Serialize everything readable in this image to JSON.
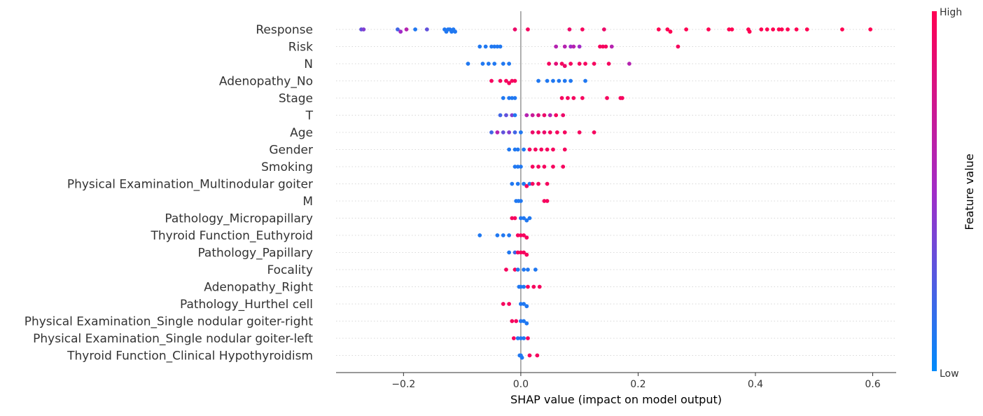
{
  "chart_data": {
    "type": "scatter",
    "subtype": "shap-beeswarm",
    "xlabel": "SHAP value (impact on model output)",
    "xlim": [
      -0.315,
      0.64
    ],
    "x_ticks": [
      {
        "value": -0.2,
        "label": "−0.2"
      },
      {
        "value": 0.0,
        "label": "0.0"
      },
      {
        "value": 0.2,
        "label": "0.2"
      },
      {
        "value": 0.4,
        "label": "0.4"
      },
      {
        "value": 0.6,
        "label": "0.6"
      }
    ],
    "colorbar": {
      "title": "Feature value",
      "high_label": "High",
      "low_label": "Low",
      "high_color": "#ff0052",
      "mid_color": "#a22bc7",
      "low_color": "#008bfb"
    },
    "grid": "horizontal dotted per feature",
    "features": [
      {
        "name": "Response",
        "points": [
          [
            -0.272,
            0.3
          ],
          [
            -0.268,
            0.4
          ],
          [
            -0.21,
            0.2
          ],
          [
            -0.205,
            0.5
          ],
          [
            -0.195,
            0.6
          ],
          [
            -0.18,
            0.1
          ],
          [
            -0.16,
            0.3
          ],
          [
            -0.13,
            0.1
          ],
          [
            -0.127,
            0.1
          ],
          [
            -0.124,
            0.1
          ],
          [
            -0.121,
            0.1
          ],
          [
            -0.118,
            0.1
          ],
          [
            -0.115,
            0.1
          ],
          [
            -0.112,
            0.1
          ],
          [
            -0.01,
            0.9
          ],
          [
            0.012,
            0.95
          ],
          [
            0.083,
            0.9
          ],
          [
            0.105,
            0.95
          ],
          [
            0.142,
            0.9
          ],
          [
            0.235,
            1
          ],
          [
            0.25,
            1
          ],
          [
            0.255,
            1
          ],
          [
            0.282,
            1
          ],
          [
            0.32,
            1
          ],
          [
            0.355,
            1
          ],
          [
            0.36,
            1
          ],
          [
            0.388,
            1
          ],
          [
            0.39,
            1
          ],
          [
            0.41,
            1
          ],
          [
            0.42,
            1
          ],
          [
            0.43,
            1
          ],
          [
            0.44,
            1
          ],
          [
            0.445,
            1
          ],
          [
            0.455,
            1
          ],
          [
            0.47,
            1
          ],
          [
            0.488,
            1
          ],
          [
            0.548,
            1
          ],
          [
            0.596,
            1
          ]
        ]
      },
      {
        "name": "Risk",
        "points": [
          [
            -0.07,
            0.1
          ],
          [
            -0.06,
            0.1
          ],
          [
            -0.05,
            0.1
          ],
          [
            -0.045,
            0.1
          ],
          [
            -0.04,
            0.1
          ],
          [
            -0.035,
            0.1
          ],
          [
            0.06,
            0.6
          ],
          [
            0.075,
            0.6
          ],
          [
            0.085,
            0.5
          ],
          [
            0.09,
            0.6
          ],
          [
            0.1,
            0.5
          ],
          [
            0.135,
            0.95
          ],
          [
            0.14,
            0.95
          ],
          [
            0.145,
            0.95
          ],
          [
            0.155,
            0.6
          ],
          [
            0.268,
            0.95
          ]
        ]
      },
      {
        "name": "N",
        "points": [
          [
            -0.09,
            0.1
          ],
          [
            -0.065,
            0.1
          ],
          [
            -0.055,
            0.1
          ],
          [
            -0.045,
            0.1
          ],
          [
            -0.03,
            0.1
          ],
          [
            -0.02,
            0.1
          ],
          [
            0.048,
            0.95
          ],
          [
            0.06,
            0.85
          ],
          [
            0.07,
            0.95
          ],
          [
            0.075,
            0.9
          ],
          [
            0.085,
            0.95
          ],
          [
            0.1,
            0.95
          ],
          [
            0.11,
            0.95
          ],
          [
            0.125,
            0.95
          ],
          [
            0.15,
            0.95
          ],
          [
            0.185,
            0.6
          ]
        ]
      },
      {
        "name": "Adenopathy_No",
        "points": [
          [
            -0.05,
            0.95
          ],
          [
            -0.035,
            0.95
          ],
          [
            -0.025,
            0.95
          ],
          [
            -0.02,
            0.95
          ],
          [
            -0.015,
            0.95
          ],
          [
            -0.01,
            0.95
          ],
          [
            0.03,
            0.1
          ],
          [
            0.045,
            0.1
          ],
          [
            0.055,
            0.1
          ],
          [
            0.065,
            0.1
          ],
          [
            0.075,
            0.1
          ],
          [
            0.085,
            0.1
          ],
          [
            0.11,
            0.1
          ]
        ]
      },
      {
        "name": "Stage",
        "points": [
          [
            -0.03,
            0.1
          ],
          [
            -0.02,
            0.1
          ],
          [
            -0.015,
            0.1
          ],
          [
            -0.01,
            0.1
          ],
          [
            0.07,
            0.95
          ],
          [
            0.08,
            0.95
          ],
          [
            0.09,
            0.95
          ],
          [
            0.105,
            0.95
          ],
          [
            0.147,
            0.95
          ],
          [
            0.17,
            0.95
          ],
          [
            0.173,
            0.95
          ]
        ]
      },
      {
        "name": "T",
        "points": [
          [
            -0.035,
            0.2
          ],
          [
            -0.025,
            0.3
          ],
          [
            -0.015,
            0.4
          ],
          [
            -0.01,
            0.1
          ],
          [
            0.01,
            0.6
          ],
          [
            0.02,
            0.7
          ],
          [
            0.03,
            0.8
          ],
          [
            0.04,
            0.9
          ],
          [
            0.05,
            0.6
          ],
          [
            0.06,
            0.95
          ],
          [
            0.072,
            0.9
          ]
        ]
      },
      {
        "name": "Age",
        "points": [
          [
            -0.05,
            0.2
          ],
          [
            -0.04,
            0.6
          ],
          [
            -0.03,
            0.3
          ],
          [
            -0.02,
            0.4
          ],
          [
            -0.01,
            0.2
          ],
          [
            0.0,
            0.1
          ],
          [
            0.02,
            0.9
          ],
          [
            0.03,
            0.95
          ],
          [
            0.04,
            0.9
          ],
          [
            0.05,
            0.95
          ],
          [
            0.062,
            0.95
          ],
          [
            0.075,
            0.95
          ],
          [
            0.1,
            0.95
          ],
          [
            0.125,
            0.95
          ]
        ]
      },
      {
        "name": "Gender",
        "points": [
          [
            -0.02,
            0.1
          ],
          [
            -0.01,
            0.1
          ],
          [
            -0.005,
            0.1
          ],
          [
            0.005,
            0.1
          ],
          [
            0.015,
            0.95
          ],
          [
            0.025,
            0.95
          ],
          [
            0.035,
            0.95
          ],
          [
            0.045,
            0.95
          ],
          [
            0.055,
            0.95
          ],
          [
            0.075,
            0.95
          ]
        ]
      },
      {
        "name": "Smoking",
        "points": [
          [
            -0.01,
            0.1
          ],
          [
            -0.005,
            0.1
          ],
          [
            0.0,
            0.1
          ],
          [
            0.02,
            0.95
          ],
          [
            0.03,
            0.95
          ],
          [
            0.04,
            0.95
          ],
          [
            0.055,
            0.95
          ],
          [
            0.072,
            0.95
          ]
        ]
      },
      {
        "name": "Physical Examination_Multinodular goiter",
        "points": [
          [
            -0.015,
            0.1
          ],
          [
            -0.005,
            0.1
          ],
          [
            0.005,
            0.1
          ],
          [
            0.01,
            0.95
          ],
          [
            0.015,
            0.1
          ],
          [
            0.02,
            0.95
          ],
          [
            0.03,
            0.95
          ],
          [
            0.045,
            0.95
          ]
        ]
      },
      {
        "name": "M",
        "points": [
          [
            -0.008,
            0.1
          ],
          [
            -0.004,
            0.1
          ],
          [
            0.0,
            0.1
          ],
          [
            0.04,
            0.95
          ],
          [
            0.045,
            0.95
          ]
        ]
      },
      {
        "name": "Pathology_Micropapillary",
        "points": [
          [
            -0.015,
            0.95
          ],
          [
            -0.01,
            0.95
          ],
          [
            0.0,
            0.1
          ],
          [
            0.005,
            0.1
          ],
          [
            0.01,
            0.1
          ],
          [
            0.015,
            0.1
          ]
        ]
      },
      {
        "name": "Thyroid Function_Euthyroid",
        "points": [
          [
            -0.07,
            0.1
          ],
          [
            -0.04,
            0.1
          ],
          [
            -0.03,
            0.1
          ],
          [
            -0.02,
            0.1
          ],
          [
            -0.005,
            0.95
          ],
          [
            0.0,
            0.95
          ],
          [
            0.005,
            0.95
          ],
          [
            0.01,
            0.95
          ]
        ]
      },
      {
        "name": "Pathology_Papillary",
        "points": [
          [
            -0.02,
            0.1
          ],
          [
            -0.01,
            0.2
          ],
          [
            -0.005,
            0.95
          ],
          [
            0.0,
            0.95
          ],
          [
            0.005,
            0.95
          ],
          [
            0.01,
            0.95
          ]
        ]
      },
      {
        "name": "Focality",
        "points": [
          [
            -0.025,
            0.95
          ],
          [
            -0.01,
            0.95
          ],
          [
            -0.005,
            0.1
          ],
          [
            0.005,
            0.1
          ],
          [
            0.012,
            0.1
          ],
          [
            0.025,
            0.1
          ]
        ]
      },
      {
        "name": "Adenopathy_Right",
        "points": [
          [
            -0.003,
            0.1
          ],
          [
            0.0,
            0.1
          ],
          [
            0.005,
            0.1
          ],
          [
            0.012,
            0.95
          ],
          [
            0.022,
            0.95
          ],
          [
            0.032,
            0.95
          ]
        ]
      },
      {
        "name": "Pathology_Hurthel cell",
        "points": [
          [
            -0.03,
            0.95
          ],
          [
            -0.02,
            0.95
          ],
          [
            0.0,
            0.1
          ],
          [
            0.005,
            0.1
          ],
          [
            0.01,
            0.1
          ]
        ]
      },
      {
        "name": "Physical Examination_Single nodular goiter-right",
        "points": [
          [
            -0.015,
            0.95
          ],
          [
            -0.008,
            0.95
          ],
          [
            0.0,
            0.1
          ],
          [
            0.005,
            0.1
          ],
          [
            0.01,
            0.1
          ]
        ]
      },
      {
        "name": "Physical Examination_Single nodular goiter-left",
        "points": [
          [
            -0.012,
            0.95
          ],
          [
            -0.005,
            0.1
          ],
          [
            0.0,
            0.1
          ],
          [
            0.005,
            0.1
          ],
          [
            0.012,
            0.95
          ]
        ]
      },
      {
        "name": "Thyroid Function_Clinical Hypothyroidism",
        "points": [
          [
            -0.002,
            0.1
          ],
          [
            0.0,
            0.1
          ],
          [
            0.002,
            0.1
          ],
          [
            0.015,
            0.95
          ],
          [
            0.028,
            0.95
          ]
        ]
      }
    ]
  }
}
